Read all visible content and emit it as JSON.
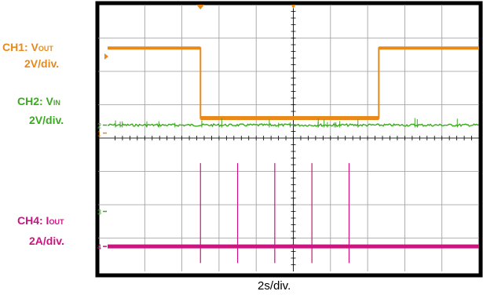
{
  "chart_data": {
    "type": "line",
    "xlabel": "2s/div.",
    "x_unit": "s",
    "x_per_div": 2,
    "x_divisions": 10,
    "channels": [
      {
        "id": "ch1",
        "name_prefix": "CH1: V",
        "name_sub": "OUT",
        "scale": "2V/div.",
        "color": "#e8891a",
        "marker": "1"
      },
      {
        "id": "ch2",
        "name_prefix": "CH2: V",
        "name_sub": "IN",
        "scale": "2V/div.",
        "color": "#3aaa1e",
        "marker": "2"
      },
      {
        "id": "ch3",
        "name_prefix": "",
        "name_sub": "",
        "scale": "",
        "color": "#3aaa1e",
        "marker": "3"
      },
      {
        "id": "ch4",
        "name_prefix": "CH4: I",
        "name_sub": "OUT",
        "scale": "2A/div.",
        "color": "#cc1480",
        "marker": "4"
      }
    ],
    "series": [
      {
        "channel": "ch1",
        "points": [
          [
            0,
            4.6
          ],
          [
            2.5,
            4.6
          ],
          [
            2.5,
            0.4
          ],
          [
            7.3,
            0.4
          ],
          [
            7.3,
            4.6
          ],
          [
            10,
            4.6
          ]
        ]
      },
      {
        "channel": "ch2",
        "points": [
          [
            0,
            0
          ],
          [
            10,
            0
          ]
        ],
        "noise": true
      },
      {
        "channel": "ch4",
        "points": [
          [
            0,
            0
          ],
          [
            10,
            0
          ]
        ],
        "spikes_at": [
          2.5,
          3.5,
          4.5,
          5.5,
          6.5
        ],
        "spike_height_div": 2.5
      }
    ]
  }
}
